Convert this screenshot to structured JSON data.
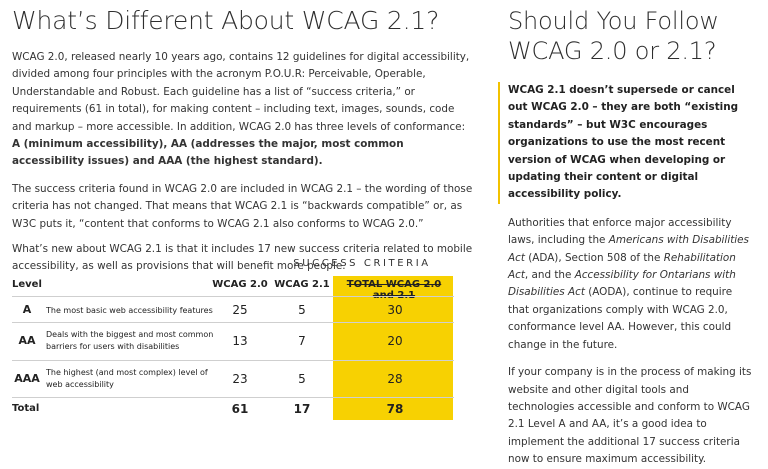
{
  "left": {
    "title": "What’s Different About WCAG 2.1?",
    "p1": {
      "text": "WCAG 2.0, released nearly 10 years ago, contains 12 guidelines for digital accessibility, divided among four principles with the acronym P.O.U.R: Perceivable, Operable, Understandable and Robust. Each guideline has a list of “success criteria,” or requirements (61 in total), for making content – including text, images, sounds, code and markup – more accessible. In addition, WCAG 2.0 has three levels of conformance: ",
      "bold": "A (minimum accessibility), AA (addresses the major, most common accessibility issues) and AAA (the highest standard)."
    },
    "p2": "The success criteria found in WCAG 2.0 are included in WCAG 2.1 – the wording of those criteria has not changed. That means that WCAG 2.1 is “backwards compatible” or, as W3C puts it, “content that conforms to WCAG 2.1 also conforms to WCAG 2.0.”",
    "p3": "What’s new about WCAG 2.1 is that it includes 17 new success criteria related to mobile accessibility, as well as provisions that will benefit more people."
  },
  "table": {
    "title": "SUCCESS CRITERIA",
    "headers": {
      "level": "Level",
      "wcag20": "WCAG 2.0",
      "wcag21": "WCAG 2.1",
      "total": "TOTAL WCAG 2.0 and 2.1"
    },
    "rows": [
      {
        "level": "A",
        "desc": "The most basic web accessibility features",
        "wcag20": "25",
        "wcag21": "5",
        "total": "30"
      },
      {
        "level": "AA",
        "desc": "Deals with the biggest and most common barriers for users with disabilities",
        "wcag20": "13",
        "wcag21": "7",
        "total": "20"
      },
      {
        "level": "AAA",
        "desc": "The highest (and most complex) level of web accessibility",
        "wcag20": "23",
        "wcag21": "5",
        "total": "28"
      }
    ],
    "total": {
      "label": "Total",
      "wcag20": "61",
      "wcag21": "17",
      "total": "78"
    },
    "highlight_color": "#f7d102"
  },
  "right": {
    "title": "Should You Follow WCAG 2.0 or 2.1?",
    "callout": "WCAG 2.1 doesn’t supersede or cancel out WCAG 2.0 – they are both “existing standards” – but W3C encourages organizations to use the most recent version of WCAG when developing or updating their content or digital accessibility policy.",
    "p1": {
      "t1": "Authorities that enforce major accessibility laws, including the ",
      "i1": "Americans with Disabilities Act",
      "t2": " (ADA), Section 508 of the ",
      "i2": "Rehabilitation Act",
      "t3": ", and the ",
      "i3": "Accessibility for Ontarians with Disabilities Act",
      "t4": " (AODA), continue to require that organizations comply with WCAG 2.0, conformance level AA. However, this could change in the future."
    },
    "p2": "If your company is in the process of making its website and other digital tools and technologies accessible and conform to WCAG 2.1 Level A and AA, it’s a good idea to implement the additional 17 success criteria now to ensure maximum accessibility.",
    "accent_color": "#f2c200"
  }
}
